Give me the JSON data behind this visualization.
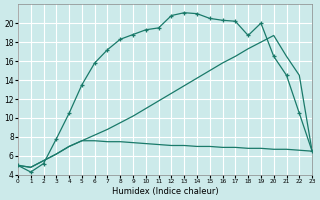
{
  "xlabel": "Humidex (Indice chaleur)",
  "background_color": "#cceaea",
  "grid_color": "#ffffff",
  "line_color": "#1a7a6a",
  "curve1_x": [
    0,
    1,
    2,
    3,
    4,
    5,
    6,
    7,
    8,
    9,
    10,
    11,
    12,
    13,
    14,
    15,
    16,
    17,
    18,
    19,
    20,
    21,
    22,
    23
  ],
  "curve1_y": [
    5.0,
    4.3,
    5.2,
    7.8,
    10.5,
    13.5,
    15.8,
    17.2,
    18.3,
    18.8,
    19.3,
    19.5,
    20.8,
    21.1,
    21.0,
    20.5,
    20.3,
    20.2,
    18.7,
    20.0,
    16.5,
    14.5,
    10.5,
    6.5
  ],
  "curve2_x": [
    0,
    1,
    2,
    3,
    4,
    5,
    6,
    7,
    8,
    9,
    10,
    11,
    12,
    13,
    14,
    15,
    16,
    17,
    18,
    19,
    20,
    21,
    22,
    23
  ],
  "curve2_y": [
    5.0,
    4.8,
    5.5,
    6.2,
    7.0,
    7.6,
    8.2,
    8.8,
    9.5,
    10.2,
    11.0,
    11.8,
    12.6,
    13.4,
    14.2,
    15.0,
    15.8,
    16.5,
    17.3,
    18.0,
    18.7,
    16.5,
    14.5,
    6.5
  ],
  "curve3_x": [
    0,
    1,
    2,
    3,
    4,
    5,
    6,
    7,
    8,
    9,
    10,
    11,
    12,
    13,
    14,
    15,
    16,
    17,
    18,
    19,
    20,
    21,
    22,
    23
  ],
  "curve3_y": [
    5.0,
    4.8,
    5.5,
    6.2,
    7.0,
    7.6,
    7.6,
    7.5,
    7.5,
    7.4,
    7.3,
    7.2,
    7.1,
    7.1,
    7.0,
    7.0,
    6.9,
    6.9,
    6.8,
    6.8,
    6.7,
    6.7,
    6.6,
    6.5
  ],
  "xlim": [
    0,
    23
  ],
  "ylim": [
    4,
    22
  ],
  "yticks": [
    4,
    6,
    8,
    10,
    12,
    14,
    16,
    18,
    20
  ],
  "xticks": [
    0,
    1,
    2,
    3,
    4,
    5,
    6,
    7,
    8,
    9,
    10,
    11,
    12,
    13,
    14,
    15,
    16,
    17,
    18,
    19,
    20,
    21,
    22,
    23
  ]
}
